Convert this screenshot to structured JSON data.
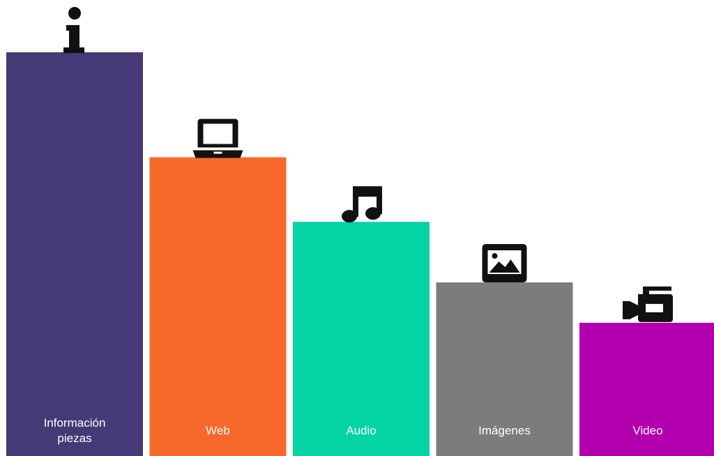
{
  "chart_data": {
    "type": "bar",
    "title": "",
    "xlabel": "",
    "ylabel": "",
    "ylim": [
      0,
      100
    ],
    "categories": [
      {
        "lines": [
          "Información",
          "piezas"
        ],
        "value": 100,
        "color": "#453a75",
        "icon": "info-icon"
      },
      {
        "lines": [
          "Web"
        ],
        "value": 74,
        "color": "#f7692a",
        "icon": "laptop-icon"
      },
      {
        "lines": [
          "Audio"
        ],
        "value": 58,
        "color": "#04d4a4",
        "icon": "music-note-icon"
      },
      {
        "lines": [
          "Imágenes"
        ],
        "value": 43,
        "color": "#7c7c7c",
        "icon": "image-icon"
      },
      {
        "lines": [
          "Video"
        ],
        "value": 33,
        "color": "#b300ae",
        "icon": "video-camera-icon"
      }
    ]
  }
}
